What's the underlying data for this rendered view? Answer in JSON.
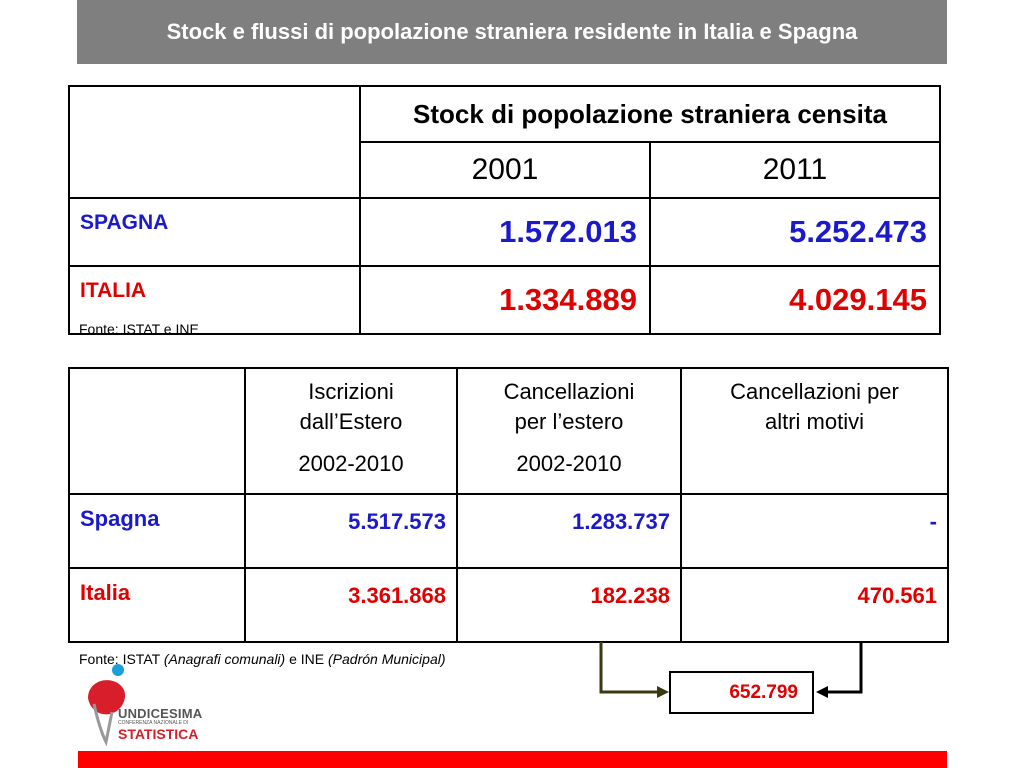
{
  "title": "Stock e flussi di popolazione straniera residente in Italia e Spagna",
  "table1": {
    "header": "Stock di popolazione straniera censita",
    "years": [
      "2001",
      "2011"
    ],
    "rows": [
      {
        "label": "SPAGNA",
        "values": [
          "1.572.013",
          "5.252.473"
        ],
        "color": "#1a1acc"
      },
      {
        "label": "ITALIA",
        "values": [
          "1.334.889",
          "4.029.145"
        ],
        "color": "#e00000"
      }
    ],
    "source": "Fonte: ISTAT e INE"
  },
  "table2": {
    "columns": [
      {
        "line1": "Iscrizioni",
        "line2": "dall’Estero",
        "period": "2002-2010"
      },
      {
        "line1": "Cancellazioni",
        "line2": "per l’estero",
        "period": "2002-2010"
      },
      {
        "line1": "Cancellazioni per",
        "line2": "altri motivi",
        "period": ""
      }
    ],
    "rows": [
      {
        "label": "Spagna",
        "values": [
          "5.517.573",
          "1.283.737",
          "-"
        ],
        "color": "#1a1acc"
      },
      {
        "label": "Italia",
        "values": [
          "3.361.868",
          "182.238",
          "470.561"
        ],
        "color": "#e00000"
      }
    ],
    "source": {
      "prefix": "Fonte: ISTAT ",
      "anagrafi": "(Anagrafi comunali)",
      "mid": " e INE ",
      "padron": "(Padrón Municipal)"
    }
  },
  "total": "652.799",
  "logo": {
    "line1": "UNDICESIMA",
    "line2": "CONFERENZA NAZIONALE DI",
    "line3": "STATISTICA"
  },
  "colors": {
    "title_bg": "#7f7f7f",
    "spagna": "#1a1acc",
    "italia": "#e00000",
    "bottom_bar": "#ff0000"
  }
}
